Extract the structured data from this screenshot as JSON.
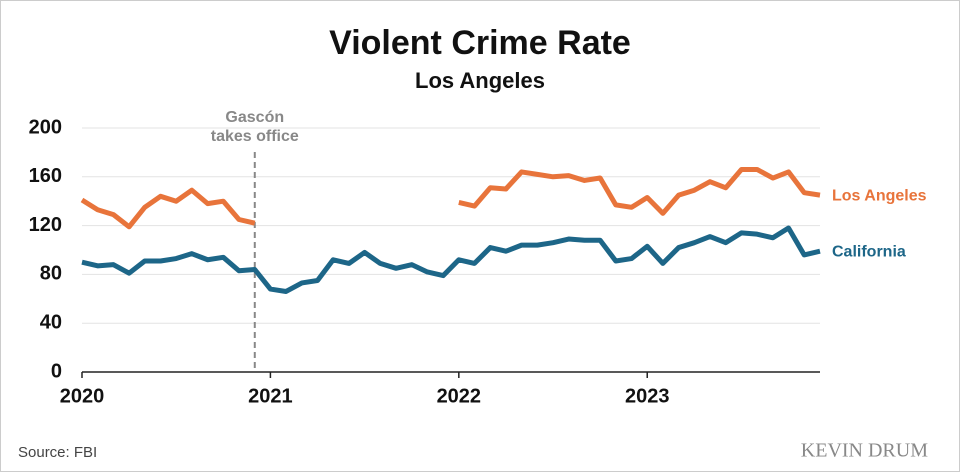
{
  "chart_data": {
    "type": "line",
    "title": "Violent Crime Rate",
    "subtitle": "Los Angeles",
    "x": [
      2020,
      2020.083,
      2020.167,
      2020.25,
      2020.333,
      2020.417,
      2020.5,
      2020.583,
      2020.667,
      2020.75,
      2020.833,
      2020.917,
      2021,
      2021.083,
      2021.167,
      2021.25,
      2021.333,
      2021.417,
      2021.5,
      2021.583,
      2021.667,
      2021.75,
      2021.833,
      2021.917,
      2022,
      2022.083,
      2022.167,
      2022.25,
      2022.333,
      2022.417,
      2022.5,
      2022.583,
      2022.667,
      2022.75,
      2022.833,
      2022.917,
      2023,
      2023.083,
      2023.167,
      2023.25,
      2023.333,
      2023.417,
      2023.5,
      2023.583,
      2023.667,
      2023.75,
      2023.833,
      2023.917
    ],
    "series": [
      {
        "name": "Los Angeles",
        "color": "#e8743b",
        "values": [
          141,
          133,
          129,
          119,
          135,
          144,
          140,
          149,
          138,
          140,
          125,
          122,
          null,
          null,
          null,
          null,
          null,
          null,
          null,
          null,
          null,
          null,
          null,
          null,
          139,
          136,
          151,
          150,
          164,
          162,
          160,
          161,
          157,
          159,
          137,
          135,
          143,
          130,
          145,
          149,
          156,
          151,
          166,
          166,
          159,
          164,
          147,
          145
        ]
      },
      {
        "name": "California",
        "color": "#1d6688",
        "values": [
          90,
          87,
          88,
          81,
          91,
          91,
          93,
          97,
          92,
          94,
          83,
          84,
          68,
          66,
          73,
          75,
          92,
          89,
          98,
          89,
          85,
          88,
          82,
          79,
          92,
          89,
          102,
          99,
          104,
          104,
          106,
          109,
          108,
          108,
          91,
          93,
          103,
          89,
          102,
          106,
          111,
          106,
          114,
          113,
          110,
          118,
          96,
          99
        ]
      }
    ],
    "xlim": [
      2020,
      2023.917
    ],
    "xticks": [
      2020,
      2021,
      2022,
      2023
    ],
    "ylim": [
      0,
      200
    ],
    "yticks": [
      0,
      40,
      80,
      120,
      160,
      200
    ],
    "grid": true,
    "annotations": [
      {
        "x": 2020.917,
        "text": [
          "Gascón",
          "takes office"
        ]
      }
    ],
    "source": "Source: FBI",
    "credit": "KEVIN DRUM"
  }
}
